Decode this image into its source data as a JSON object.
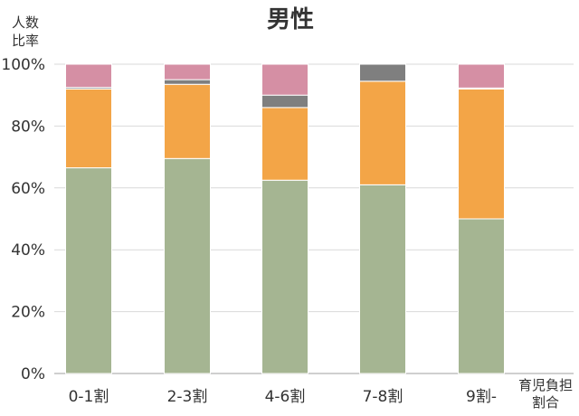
{
  "chart_data": {
    "type": "bar",
    "stacked": true,
    "title": "男性",
    "ylabel": [
      "人数",
      "比率"
    ],
    "xlabel": [
      "育児負担",
      "割合"
    ],
    "categories": [
      "0-1割",
      "2-3割",
      "4-6割",
      "7-8割",
      "9割-"
    ],
    "ylim": [
      0,
      100
    ],
    "yticks": [
      "0%",
      "20%",
      "40%",
      "60%",
      "80%",
      "100%"
    ],
    "grid": true,
    "series": [
      {
        "color": "#a5b592",
        "values": [
          66.5,
          69.5,
          62.5,
          61,
          50
        ]
      },
      {
        "color": "#f3a547",
        "values": [
          25.5,
          24,
          23.5,
          33.5,
          42
        ]
      },
      {
        "color": "#7f7f7f",
        "values": [
          0.5,
          1.5,
          4,
          5.5,
          0.3
        ]
      },
      {
        "color": "#d58fa4",
        "values": [
          7.5,
          5,
          10,
          0,
          7.7
        ]
      }
    ]
  }
}
